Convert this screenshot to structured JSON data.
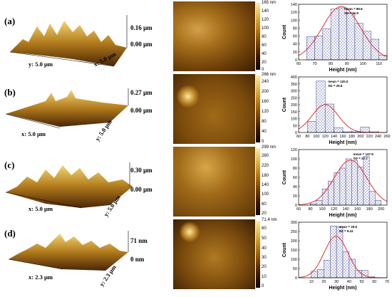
{
  "panels": [
    {
      "label": "(a)",
      "z_top": "0.16 µm",
      "z_bottom": "0.00 µm",
      "x_axis": "y: 5.0 µm",
      "y_axis": "x: 5.0 µm",
      "cbar_ticks": [
        "165 nm",
        "140",
        "120",
        "100",
        "80",
        "60",
        "40",
        "20",
        "0"
      ]
    },
    {
      "label": "(b)",
      "z_top": "0.27 µm",
      "z_bottom": "0.00 µm",
      "x_axis": "x: 5.0 µm",
      "y_axis": "y: 5.0 µm",
      "cbar_ticks": [
        "266 nm",
        "240",
        "200",
        "160",
        "120",
        "80",
        "40",
        "0"
      ]
    },
    {
      "label": "(c)",
      "z_top": "0.30 µm",
      "z_bottom": "0.00 µm",
      "x_axis": "x: 5.0 µm",
      "y_axis": "y: 5.0 µm",
      "cbar_ticks": [
        "299 nm",
        "260",
        "220",
        "180",
        "140",
        "100",
        "60",
        "20"
      ]
    },
    {
      "label": "(d)",
      "z_top": "71 nm",
      "z_bottom": "0 nm",
      "x_axis": "x: 2.3 µm",
      "y_axis": "y: 2.3 µm",
      "cbar_ticks": [
        "71.4 nm",
        "60",
        "50",
        "40",
        "30",
        "20",
        "10",
        "0"
      ]
    }
  ],
  "chart_data": [
    {
      "type": "bar",
      "xlabel": "Height (nm)",
      "ylabel": "Count",
      "xlim": [
        60,
        115
      ],
      "ylim": [
        0,
        140
      ],
      "xticks": [
        60,
        70,
        80,
        90,
        100,
        110
      ],
      "yticks": [
        0,
        20,
        40,
        60,
        80,
        100,
        120,
        140
      ],
      "annotation": [
        "mean = 86.6",
        "SD = 11.9"
      ],
      "mean": 86.6,
      "sd": 11.9,
      "bin_edges": [
        65,
        70,
        75,
        80,
        85,
        90,
        95,
        100,
        105,
        110,
        115
      ],
      "values": [
        58,
        60,
        78,
        128,
        131,
        118,
        92,
        72,
        52,
        12
      ]
    },
    {
      "type": "bar",
      "xlabel": "Height (nm)",
      "ylabel": "Count",
      "xlim": [
        60,
        260
      ],
      "ylim": [
        0,
        400
      ],
      "xticks": [
        60,
        80,
        100,
        120,
        140,
        160,
        180,
        200,
        220,
        240,
        260
      ],
      "yticks": [
        0,
        50,
        100,
        150,
        200,
        250,
        300,
        350,
        400
      ],
      "annotation": [
        "mean = 120.0",
        "SD = 29.6"
      ],
      "mean": 120.0,
      "sd": 29.6,
      "bin_edges": [
        80,
        100,
        120,
        140,
        160,
        180,
        200,
        220,
        240
      ],
      "values": [
        80,
        370,
        205,
        35,
        5,
        5,
        40,
        5
      ]
    },
    {
      "type": "bar",
      "xlabel": "Height (nm)",
      "ylabel": "Count",
      "xlim": [
        60,
        210
      ],
      "ylim": [
        0,
        120
      ],
      "xticks": [
        60,
        80,
        100,
        120,
        140,
        160,
        180,
        200
      ],
      "yticks": [
        0,
        20,
        40,
        60,
        80,
        100,
        120
      ],
      "annotation": [
        "mean = 147.9",
        "SD = 27.7"
      ],
      "mean": 147.9,
      "sd": 27.7,
      "bin_edges": [
        80,
        90,
        100,
        110,
        120,
        130,
        140,
        150,
        160,
        170,
        180,
        190,
        200
      ],
      "values": [
        3,
        10,
        35,
        52,
        70,
        80,
        100,
        96,
        82,
        105,
        30,
        10
      ]
    },
    {
      "type": "bar",
      "xlabel": "Height (nm)",
      "ylabel": "Count",
      "xlim": [
        0,
        70
      ],
      "ylim": [
        0,
        300
      ],
      "xticks": [
        10,
        20,
        30,
        40,
        50,
        60,
        70
      ],
      "yticks": [
        0,
        50,
        100,
        150,
        200,
        250,
        300
      ],
      "annotation": [
        "mean = 29.6",
        "SD = 9.41"
      ],
      "mean": 29.6,
      "sd": 9.41,
      "bin_edges": [
        10,
        15,
        20,
        25,
        30,
        35,
        40,
        45,
        50,
        55,
        60
      ],
      "values": [
        35,
        45,
        95,
        280,
        275,
        140,
        100,
        40,
        40,
        5
      ]
    }
  ]
}
